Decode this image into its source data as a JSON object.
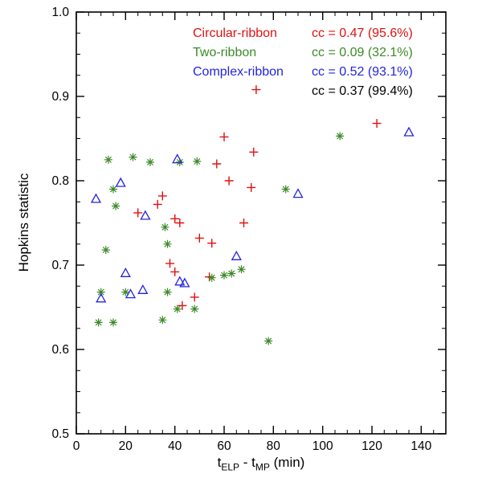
{
  "chart_data": {
    "type": "scatter",
    "title": "",
    "xlabel": "t_ELP - t_MP (min)",
    "ylabel": "Hopkins statistic",
    "xlabel_parts": {
      "t1": "t",
      "sub1": "ELP",
      "mid": " - ",
      "t2": "t",
      "sub2": "MP",
      "unit": " (min)"
    },
    "xlim": [
      0,
      150
    ],
    "ylim": [
      0.5,
      1.0
    ],
    "xticks": [
      0,
      20,
      40,
      60,
      80,
      100,
      120,
      140
    ],
    "yticks": [
      0.5,
      0.6,
      0.7,
      0.8,
      0.9,
      1.0
    ],
    "grid": false,
    "legend_position": "top-center-inside",
    "axis_color": "#000000",
    "series": [
      {
        "name": "Circular-ribbon",
        "marker": "plus",
        "color": "#e01010",
        "cc_label": "cc = 0.47 (95.6%)",
        "points": [
          [
            25,
            0.762
          ],
          [
            33,
            0.772
          ],
          [
            35,
            0.782
          ],
          [
            38,
            0.702
          ],
          [
            40,
            0.692
          ],
          [
            40,
            0.755
          ],
          [
            42,
            0.75
          ],
          [
            43,
            0.652
          ],
          [
            48,
            0.662
          ],
          [
            50,
            0.732
          ],
          [
            54,
            0.686
          ],
          [
            55,
            0.726
          ],
          [
            57,
            0.82
          ],
          [
            60,
            0.852
          ],
          [
            62,
            0.8
          ],
          [
            68,
            0.75
          ],
          [
            71,
            0.792
          ],
          [
            72,
            0.834
          ],
          [
            73,
            0.908
          ],
          [
            122,
            0.868
          ]
        ]
      },
      {
        "name": "Two-ribbon",
        "marker": "asterisk",
        "color": "#3c8a28",
        "cc_label": "cc = 0.09 (32.1%)",
        "points": [
          [
            9,
            0.632
          ],
          [
            10,
            0.668
          ],
          [
            12,
            0.718
          ],
          [
            13,
            0.825
          ],
          [
            15,
            0.632
          ],
          [
            15,
            0.79
          ],
          [
            16,
            0.77
          ],
          [
            20,
            0.668
          ],
          [
            23,
            0.828
          ],
          [
            30,
            0.822
          ],
          [
            35,
            0.635
          ],
          [
            36,
            0.745
          ],
          [
            37,
            0.668
          ],
          [
            37,
            0.725
          ],
          [
            41,
            0.648
          ],
          [
            42,
            0.822
          ],
          [
            48,
            0.648
          ],
          [
            49,
            0.823
          ],
          [
            55,
            0.685
          ],
          [
            60,
            0.688
          ],
          [
            63,
            0.69
          ],
          [
            67,
            0.695
          ],
          [
            78,
            0.61
          ],
          [
            85,
            0.79
          ],
          [
            107,
            0.853
          ]
        ]
      },
      {
        "name": "Complex-ribbon",
        "marker": "triangle-open",
        "color": "#2424dd",
        "cc_label": "cc = 0.52 (93.1%)",
        "points": [
          [
            8,
            0.778
          ],
          [
            10,
            0.66
          ],
          [
            18,
            0.797
          ],
          [
            20,
            0.69
          ],
          [
            22,
            0.665
          ],
          [
            27,
            0.67
          ],
          [
            28,
            0.758
          ],
          [
            41,
            0.825
          ],
          [
            42,
            0.68
          ],
          [
            44,
            0.678
          ],
          [
            65,
            0.71
          ],
          [
            90,
            0.784
          ],
          [
            135,
            0.857
          ]
        ]
      }
    ],
    "overall_cc_label": "cc = 0.37 (99.4%)",
    "overall_cc_color": "#000000"
  }
}
